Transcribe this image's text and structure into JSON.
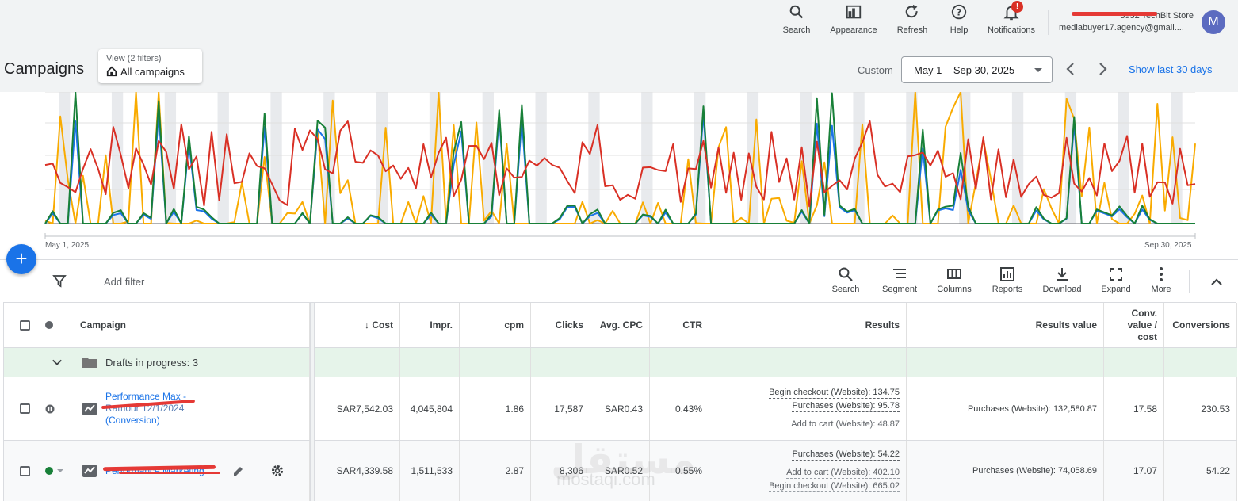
{
  "header": {
    "tools": [
      {
        "label": "Search",
        "icon": "search-icon"
      },
      {
        "label": "Appearance",
        "icon": "appearance-icon"
      },
      {
        "label": "Refresh",
        "icon": "refresh-icon"
      },
      {
        "label": "Help",
        "icon": "help-icon"
      },
      {
        "label": "Notifications",
        "icon": "bell-icon"
      }
    ],
    "notification_badge": "!",
    "account_store": "3932 TechBit Store",
    "account_email": "mediabuyer17.agency@gmail....",
    "avatar_letter": "M"
  },
  "titlebar": {
    "title": "Campaigns",
    "view_label": "View (2 filters)",
    "view_value": "All campaigns",
    "custom_label": "Custom",
    "date_range": "May 1 – Sep 30, 2025",
    "show_last": "Show last 30 days"
  },
  "chart_data": {
    "type": "line",
    "x_start_label": "May 1, 2025",
    "x_end_label": "Sep 30, 2025",
    "series": [
      {
        "name": "red",
        "color": "#d93025"
      },
      {
        "name": "orange",
        "color": "#f9ab00"
      },
      {
        "name": "green",
        "color": "#188038"
      },
      {
        "name": "blue",
        "color": "#1a73e8"
      }
    ]
  },
  "toolbar": {
    "add_filter": "Add filter",
    "buttons": [
      {
        "label": "Search"
      },
      {
        "label": "Segment"
      },
      {
        "label": "Columns"
      },
      {
        "label": "Reports"
      },
      {
        "label": "Download"
      },
      {
        "label": "Expand"
      },
      {
        "label": "More"
      }
    ]
  },
  "table": {
    "headers": {
      "campaign": "Campaign",
      "cost": "↓ Cost",
      "impr": "Impr.",
      "cpm": "cpm",
      "clicks": "Clicks",
      "avg_cpc": "Avg. CPC",
      "ctr": "CTR",
      "results": "Results",
      "results_value": "Results value",
      "conv_value_cost": "Conv. value / cost",
      "conversions": "Conversions"
    },
    "drafts_label": "Drafts in progress: 3",
    "rows": [
      {
        "campaign_line1": "Performance Max -",
        "campaign_line2": "Ramour 12/1/2024",
        "campaign_line3": "(Conversion)",
        "cost": "SAR7,542.03",
        "impr": "4,045,804",
        "cpm": "1.86",
        "clicks": "17,587",
        "avg_cpc": "SAR0.43",
        "ctr": "0.43%",
        "results": [
          "Begin checkout (Website): 134.75",
          "Purchases (Website): 95.78",
          "Add to cart (Website): 48.87"
        ],
        "results_value": "Purchases (Website): 132,580.87",
        "conv_value_cost": "17.58",
        "conversions": "230.53"
      },
      {
        "campaign_line1": "Performance Marketing",
        "cost": "SAR4,339.58",
        "impr": "1,511,533",
        "cpm": "2.87",
        "clicks": "8,306",
        "avg_cpc": "SAR0.52",
        "ctr": "0.55%",
        "results": [
          "Purchases (Website): 54.22",
          "Add to cart (Website): 402.10",
          "Begin checkout (Website): 665.02"
        ],
        "results_value": "Purchases (Website): 74,058.69",
        "conv_value_cost": "17.07",
        "conversions": "54.22"
      }
    ]
  },
  "watermark": {
    "arabic": "مستقل",
    "latin": "mostaqi.com"
  }
}
